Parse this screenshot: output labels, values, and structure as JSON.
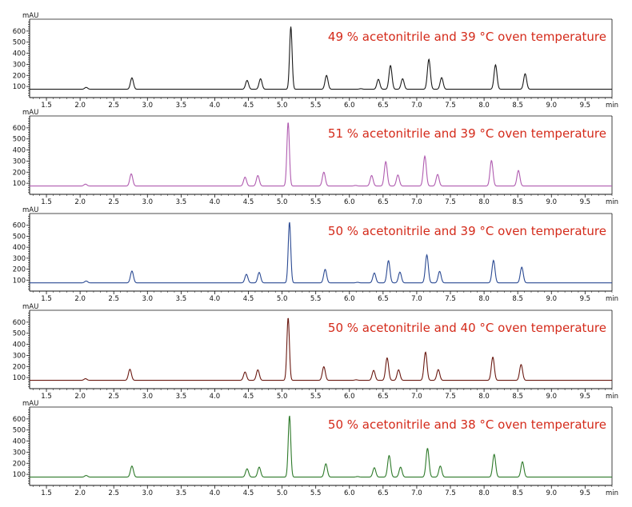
{
  "chart_data": [
    {
      "type": "line",
      "title": "49 % acetonitrile and 39 °C oven temperature",
      "ylabel": "mAU",
      "xlabel": "min",
      "color": "#1a1a1a",
      "xlim": [
        1.25,
        9.9
      ],
      "ylim": [
        0,
        700
      ],
      "xticks": [
        "1.5",
        "2.0",
        "2.5",
        "3.0",
        "3.5",
        "4.0",
        "4.5",
        "5.0",
        "5.5",
        "6.0",
        "6.5",
        "7.0",
        "7.5",
        "8.0",
        "8.5",
        "9.0",
        "9.5"
      ],
      "yticks": [
        "100",
        "200",
        "300",
        "400",
        "500",
        "600"
      ],
      "baseline": 75,
      "peaks": [
        {
          "x": 2.09,
          "y": 92
        },
        {
          "x": 2.77,
          "y": 178
        },
        {
          "x": 4.48,
          "y": 155
        },
        {
          "x": 4.68,
          "y": 170
        },
        {
          "x": 5.13,
          "y": 640
        },
        {
          "x": 5.66,
          "y": 200
        },
        {
          "x": 6.17,
          "y": 80
        },
        {
          "x": 6.43,
          "y": 165
        },
        {
          "x": 6.61,
          "y": 290
        },
        {
          "x": 6.79,
          "y": 170
        },
        {
          "x": 7.18,
          "y": 345
        },
        {
          "x": 7.37,
          "y": 180
        },
        {
          "x": 8.17,
          "y": 295
        },
        {
          "x": 8.61,
          "y": 215
        }
      ]
    },
    {
      "type": "line",
      "title": "51 % acetonitrile and 39 °C oven temperature",
      "ylabel": "mAU",
      "xlabel": "min",
      "color": "#b05cb0",
      "xlim": [
        1.25,
        9.9
      ],
      "ylim": [
        0,
        700
      ],
      "xticks": [
        "1.5",
        "2.0",
        "2.5",
        "3.0",
        "3.5",
        "4.0",
        "4.5",
        "5.0",
        "5.5",
        "6.0",
        "6.5",
        "7.0",
        "7.5",
        "8.0",
        "8.5",
        "9.0",
        "9.5"
      ],
      "yticks": [
        "100",
        "200",
        "300",
        "400",
        "500",
        "600"
      ],
      "baseline": 75,
      "peaks": [
        {
          "x": 2.08,
          "y": 92
        },
        {
          "x": 2.76,
          "y": 185
        },
        {
          "x": 4.45,
          "y": 155
        },
        {
          "x": 4.64,
          "y": 170
        },
        {
          "x": 5.09,
          "y": 650
        },
        {
          "x": 5.62,
          "y": 200
        },
        {
          "x": 6.09,
          "y": 80
        },
        {
          "x": 6.33,
          "y": 170
        },
        {
          "x": 6.54,
          "y": 295
        },
        {
          "x": 6.72,
          "y": 175
        },
        {
          "x": 7.12,
          "y": 345
        },
        {
          "x": 7.31,
          "y": 180
        },
        {
          "x": 8.11,
          "y": 305
        },
        {
          "x": 8.51,
          "y": 215
        }
      ]
    },
    {
      "type": "line",
      "title": "50 % acetonitrile and 39 °C oven temperature",
      "ylabel": "mAU",
      "xlabel": "min",
      "color": "#2b4a93",
      "xlim": [
        1.25,
        9.9
      ],
      "ylim": [
        0,
        700
      ],
      "xticks": [
        "1.5",
        "2.0",
        "2.5",
        "3.0",
        "3.5",
        "4.0",
        "4.5",
        "5.0",
        "5.5",
        "6.0",
        "6.5",
        "7.0",
        "7.5",
        "8.0",
        "8.5",
        "9.0",
        "9.5"
      ],
      "yticks": [
        "100",
        "200",
        "300",
        "400",
        "500",
        "600"
      ],
      "baseline": 75,
      "peaks": [
        {
          "x": 2.09,
          "y": 92
        },
        {
          "x": 2.77,
          "y": 183
        },
        {
          "x": 4.47,
          "y": 153
        },
        {
          "x": 4.66,
          "y": 170
        },
        {
          "x": 5.11,
          "y": 630
        },
        {
          "x": 5.64,
          "y": 198
        },
        {
          "x": 6.12,
          "y": 80
        },
        {
          "x": 6.37,
          "y": 165
        },
        {
          "x": 6.58,
          "y": 278
        },
        {
          "x": 6.75,
          "y": 173
        },
        {
          "x": 7.15,
          "y": 330
        },
        {
          "x": 7.34,
          "y": 180
        },
        {
          "x": 8.14,
          "y": 280
        },
        {
          "x": 8.56,
          "y": 218
        }
      ]
    },
    {
      "type": "line",
      "title": "50 % acetonitrile and 40 °C oven temperature",
      "ylabel": "mAU",
      "xlabel": "min",
      "color": "#6b1a12",
      "xlim": [
        1.25,
        9.9
      ],
      "ylim": [
        0,
        700
      ],
      "xticks": [
        "1.5",
        "2.0",
        "2.5",
        "3.0",
        "3.5",
        "4.0",
        "4.5",
        "5.0",
        "5.5",
        "6.0",
        "6.5",
        "7.0",
        "7.5",
        "8.0",
        "8.5",
        "9.0",
        "9.5"
      ],
      "yticks": [
        "100",
        "200",
        "300",
        "400",
        "500",
        "600"
      ],
      "baseline": 75,
      "peaks": [
        {
          "x": 2.08,
          "y": 90
        },
        {
          "x": 2.74,
          "y": 175
        },
        {
          "x": 4.45,
          "y": 150
        },
        {
          "x": 4.64,
          "y": 170
        },
        {
          "x": 5.09,
          "y": 640
        },
        {
          "x": 5.62,
          "y": 198
        },
        {
          "x": 6.1,
          "y": 80
        },
        {
          "x": 6.36,
          "y": 165
        },
        {
          "x": 6.56,
          "y": 278
        },
        {
          "x": 6.73,
          "y": 170
        },
        {
          "x": 7.13,
          "y": 330
        },
        {
          "x": 7.32,
          "y": 172
        },
        {
          "x": 8.13,
          "y": 285
        },
        {
          "x": 8.55,
          "y": 218
        }
      ]
    },
    {
      "type": "line",
      "title": "50 % acetonitrile and 38 °C oven temperature",
      "ylabel": "mAU",
      "xlabel": "min",
      "color": "#2e7a2a",
      "xlim": [
        1.25,
        9.9
      ],
      "ylim": [
        0,
        700
      ],
      "xticks": [
        "1.5",
        "2.0",
        "2.5",
        "3.0",
        "3.5",
        "4.0",
        "4.5",
        "5.0",
        "5.5",
        "6.0",
        "6.5",
        "7.0",
        "7.5",
        "8.0",
        "8.5",
        "9.0",
        "9.5"
      ],
      "yticks": [
        "100",
        "200",
        "300",
        "400",
        "500",
        "600"
      ],
      "baseline": 75,
      "peaks": [
        {
          "x": 2.09,
          "y": 90
        },
        {
          "x": 2.77,
          "y": 175
        },
        {
          "x": 4.48,
          "y": 150
        },
        {
          "x": 4.66,
          "y": 165
        },
        {
          "x": 5.11,
          "y": 630
        },
        {
          "x": 5.65,
          "y": 195
        },
        {
          "x": 6.12,
          "y": 80
        },
        {
          "x": 6.37,
          "y": 160
        },
        {
          "x": 6.59,
          "y": 270
        },
        {
          "x": 6.76,
          "y": 165
        },
        {
          "x": 7.16,
          "y": 335
        },
        {
          "x": 7.35,
          "y": 175
        },
        {
          "x": 8.15,
          "y": 280
        },
        {
          "x": 8.57,
          "y": 213
        }
      ]
    }
  ],
  "title_color": "#d42a1a"
}
